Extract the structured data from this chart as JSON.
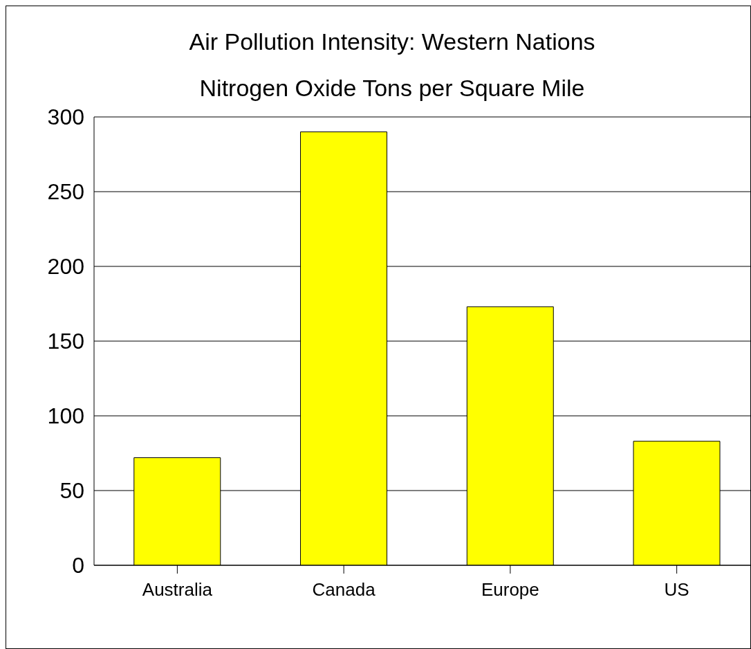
{
  "chart_data": {
    "type": "bar",
    "title": "Air Pollution Intensity: Western Nations",
    "subtitle": "Nitrogen Oxide Tons per Square Mile",
    "categories": [
      "Australia",
      "Canada",
      "Europe",
      "US"
    ],
    "values": [
      72,
      290,
      173,
      83
    ],
    "color": "#ffff00",
    "ylim": [
      0,
      300
    ],
    "yticks": [
      0,
      50,
      100,
      150,
      200,
      250,
      300
    ],
    "grid": "y"
  }
}
